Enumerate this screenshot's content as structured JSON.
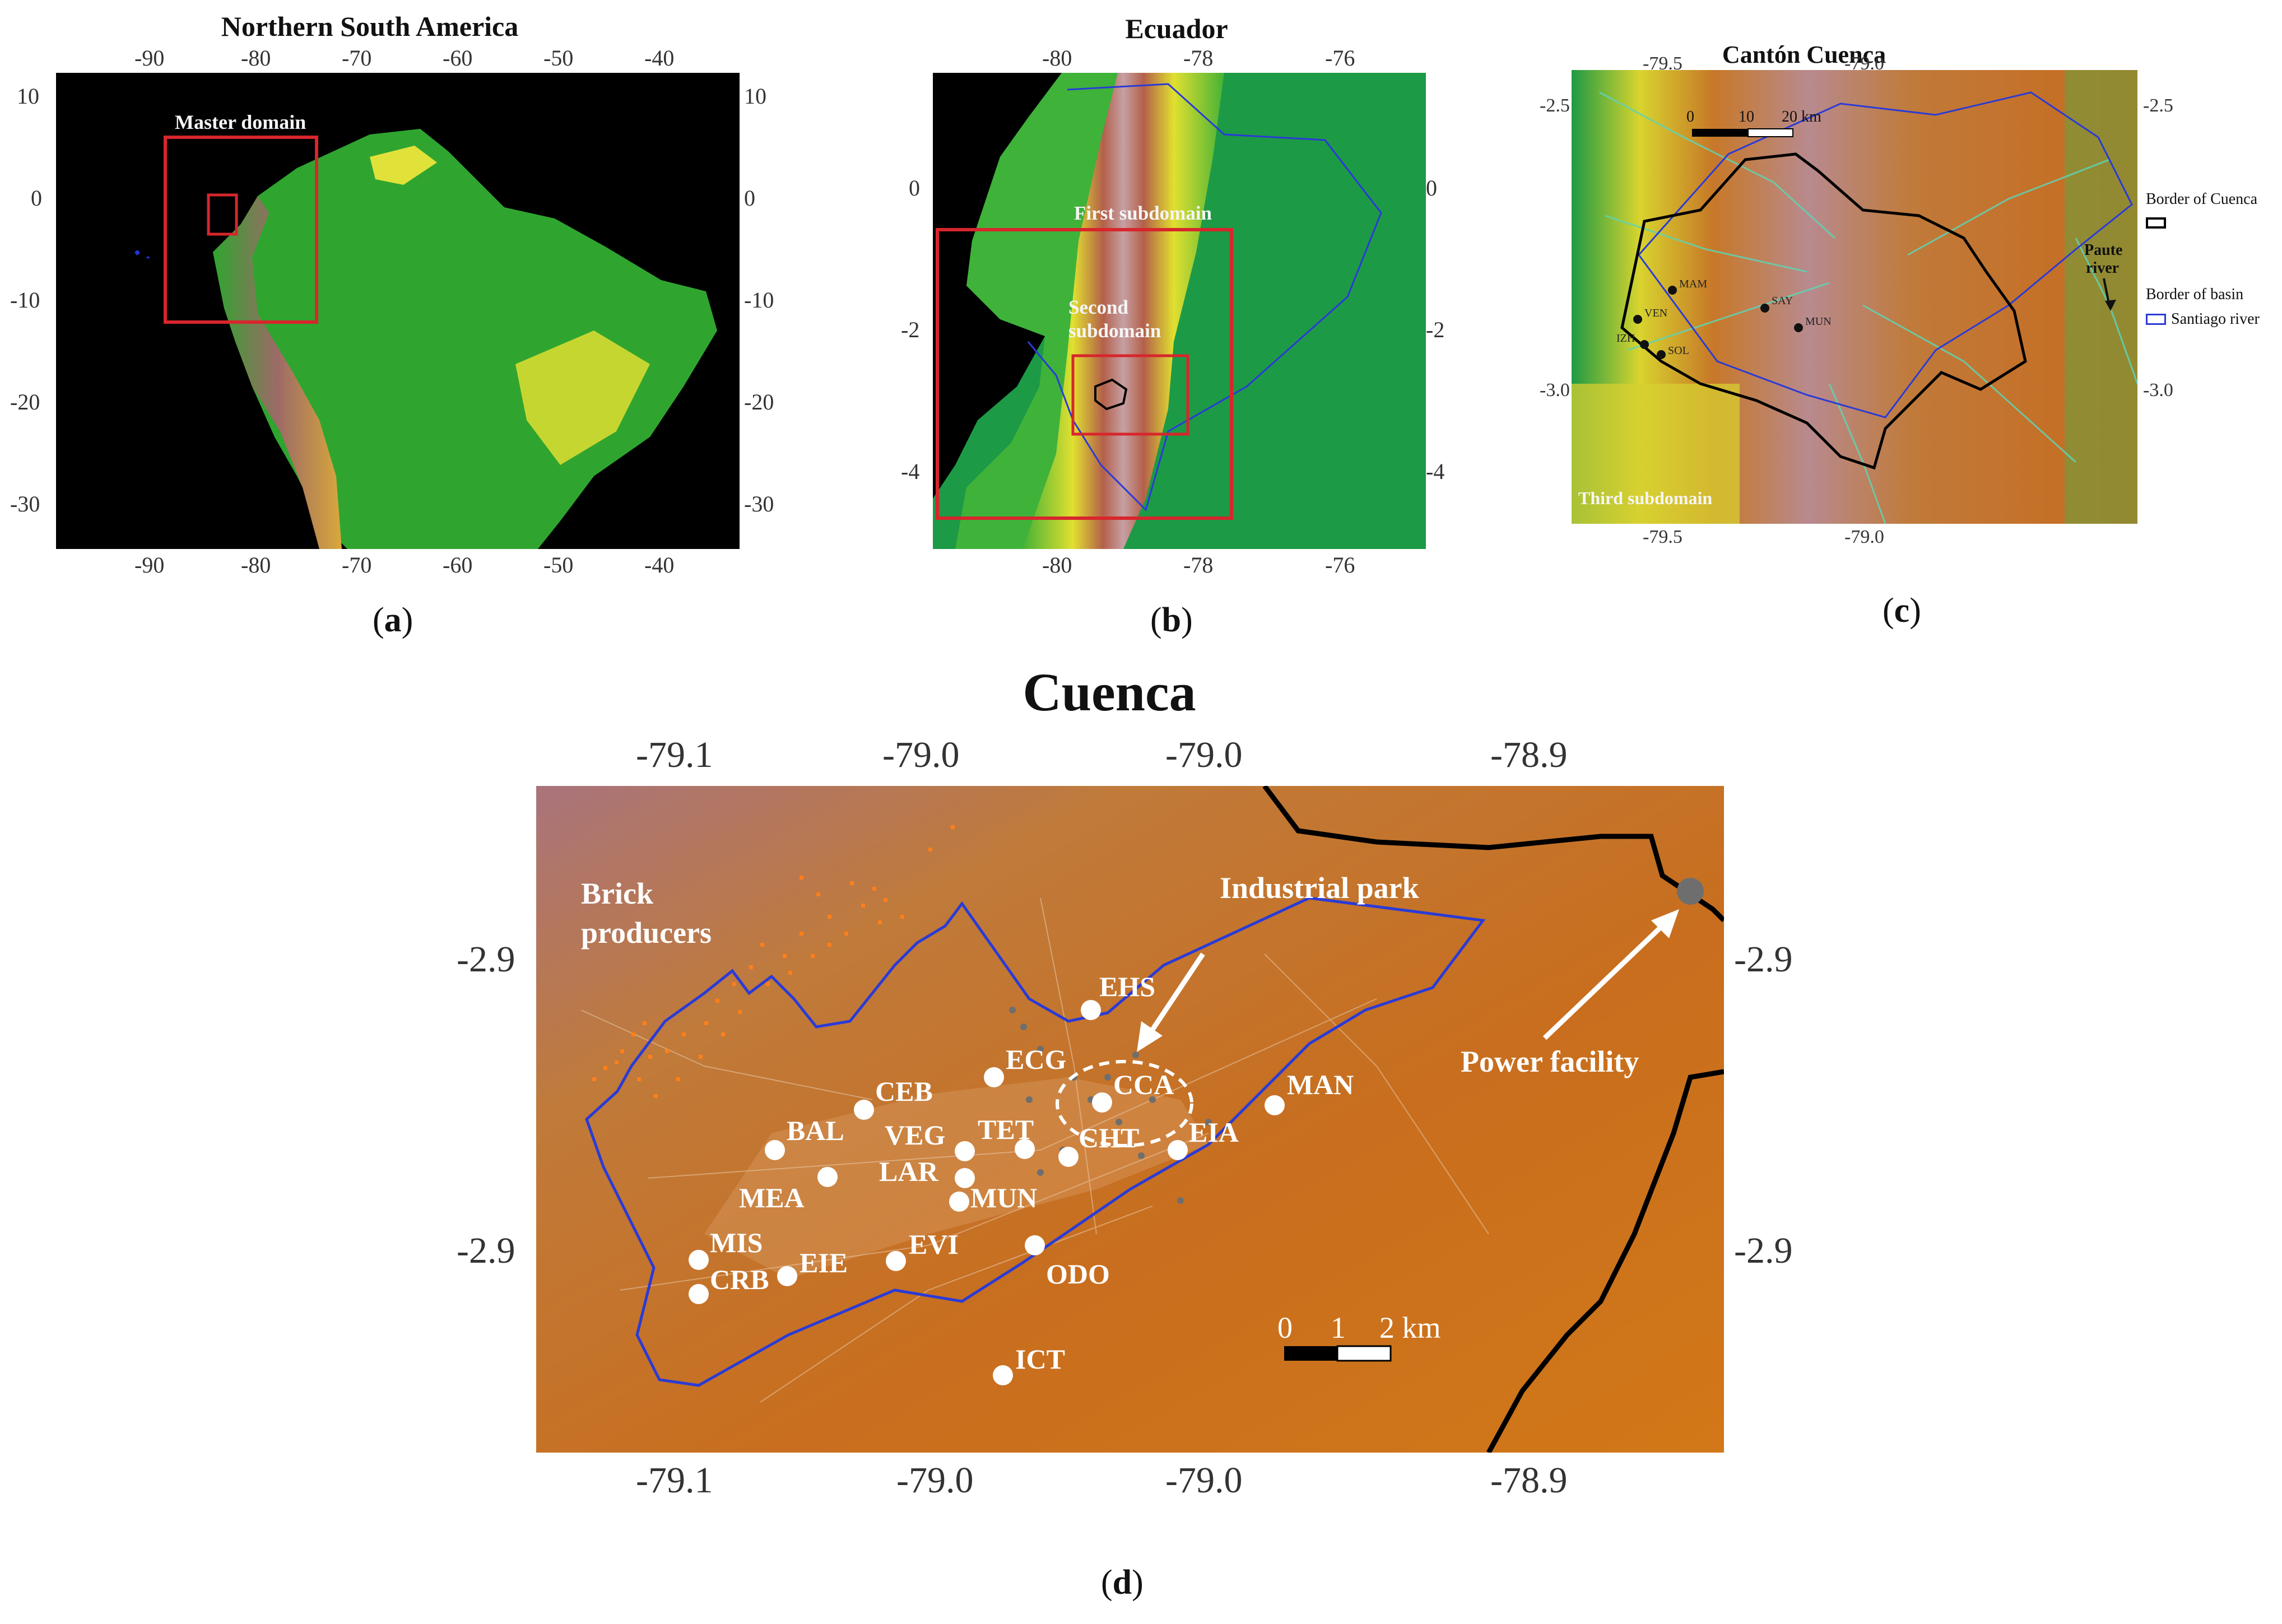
{
  "panel_a": {
    "title": "Northern South America",
    "label": "a",
    "top_ticks": [
      "-90",
      "-80",
      "-70",
      "-60",
      "-50",
      "-40"
    ],
    "bottom_ticks": [
      "-90",
      "-80",
      "-70",
      "-60",
      "-50",
      "-40"
    ],
    "left_ticks": [
      "10",
      "0",
      "-10",
      "-20",
      "-30"
    ],
    "right_ticks": [
      "10",
      "0",
      "-10",
      "-20",
      "-30"
    ],
    "annotation": "Master domain"
  },
  "panel_b": {
    "title": "Ecuador",
    "label": "b",
    "top_ticks": [
      "-80",
      "-78",
      "-76"
    ],
    "bottom_ticks": [
      "-80",
      "-78",
      "-76"
    ],
    "left_ticks": [
      "0",
      "-2",
      "-4"
    ],
    "right_ticks": [
      "0",
      "-2",
      "-4"
    ],
    "annotation_first": "First subdomain",
    "annotation_second_line1": "Second",
    "annotation_second_line2": "subdomain"
  },
  "panel_c": {
    "title": "Cantón Cuenca",
    "label": "c",
    "top_ticks": [
      "-79.5",
      "-79.0"
    ],
    "bottom_ticks": [
      "-79.5",
      "-79.0"
    ],
    "left_ticks": [
      "-2.5",
      "-3.0"
    ],
    "right_ticks": [
      "-2.5",
      "-3.0"
    ],
    "scale": [
      "0",
      "10",
      "20 km"
    ],
    "annotation": "Third subdomain",
    "river_line1": "Paute",
    "river_line2": "river",
    "stations": [
      "MAM",
      "SAY",
      "VEN",
      "IZH",
      "SOL",
      "MUN"
    ],
    "legend_border_title": "Border of Cuenca",
    "legend_basin_title": "Border of basin",
    "legend_basin_item": "Santiago river"
  },
  "panel_d": {
    "title": "Cuenca",
    "label": "d",
    "top_ticks": [
      "-79.1",
      "-79.0",
      "-79.0",
      "-78.9"
    ],
    "bottom_ticks": [
      "-79.1",
      "-79.0",
      "-79.0",
      "-78.9"
    ],
    "left_ticks": [
      "-2.9",
      "-2.9"
    ],
    "right_ticks": [
      "-2.9",
      "-2.9"
    ],
    "scale": [
      "0",
      "1",
      "2 km"
    ],
    "brick_line1": "Brick",
    "brick_line2": "producers",
    "industrial": "Industrial park",
    "power": "Power facility",
    "stations": [
      "EHS",
      "ECG",
      "CCA",
      "CEB",
      "BAL",
      "VEG",
      "TET",
      "CHT",
      "EIA",
      "MAN",
      "LAR",
      "MEA",
      "MUN",
      "MIS",
      "EIE",
      "EVI",
      "ODO",
      "CRB",
      "ICT"
    ]
  },
  "colors": {
    "domain_box": "#d7262c",
    "basin_border": "#2a3bd6",
    "city_border": "#000000",
    "station": "#ffffff",
    "brick": "#ff7f1a"
  }
}
